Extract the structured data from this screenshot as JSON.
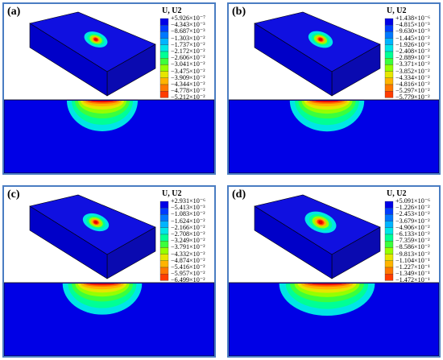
{
  "panels": [
    {
      "label": "(a)",
      "legend_title": "U, U2",
      "values": [
        "+5.926×10⁻⁷",
        "−4.343×10⁻³",
        "−8.687×10⁻³",
        "−1.303×10⁻²",
        "−1.737×10⁻²",
        "−2.172×10⁻²",
        "−2.606×10⁻²",
        "−3.041×10⁻²",
        "−3.475×10⁻²",
        "−3.909×10⁻²",
        "−4.344×10⁻²",
        "−4.778×10⁻²",
        "−5.212×10⁻²"
      ]
    },
    {
      "label": "(b)",
      "legend_title": "U, U2",
      "values": [
        "+1.438×10⁻⁶",
        "−4.815×10⁻³",
        "−9.630×10⁻³",
        "−1.445×10⁻²",
        "−1.926×10⁻²",
        "−2.408×10⁻²",
        "−2.889×10⁻²",
        "−3.371×10⁻²",
        "−3.852×10⁻²",
        "−4.334×10⁻²",
        "−4.816×10⁻²",
        "−5.297×10⁻²",
        "−5.779×10⁻²"
      ]
    },
    {
      "label": "(c)",
      "legend_title": "U, U2",
      "values": [
        "+2.931×10⁻⁶",
        "−5.413×10⁻³",
        "−1.083×10⁻²",
        "−1.624×10⁻²",
        "−2.166×10⁻²",
        "−2.708×10⁻²",
        "−3.249×10⁻²",
        "−3.791×10⁻²",
        "−4.332×10⁻²",
        "−4.874×10⁻²",
        "−5.416×10⁻²",
        "−5.957×10⁻²",
        "−6.499×10⁻²"
      ]
    },
    {
      "label": "(d)",
      "legend_title": "U, U2",
      "values": [
        "+5.091×10⁻⁶",
        "−1.226×10⁻²",
        "−2.453×10⁻²",
        "−3.679×10⁻²",
        "−4.906×10⁻²",
        "−6.133×10⁻²",
        "−7.359×10⁻²",
        "−8.586×10⁻²",
        "−9.813×10⁻²",
        "−1.104×10⁻¹",
        "−1.227×10⁻¹",
        "−1.349×10⁻¹",
        "−1.472×10⁻¹"
      ]
    }
  ],
  "colormap": [
    "#0000e6",
    "#003cff",
    "#0078ff",
    "#00b4ff",
    "#00e6e6",
    "#00ff96",
    "#3cff3c",
    "#96ff00",
    "#e6e600",
    "#ffb400",
    "#ff7800",
    "#ff3c00",
    "#e60000"
  ]
}
